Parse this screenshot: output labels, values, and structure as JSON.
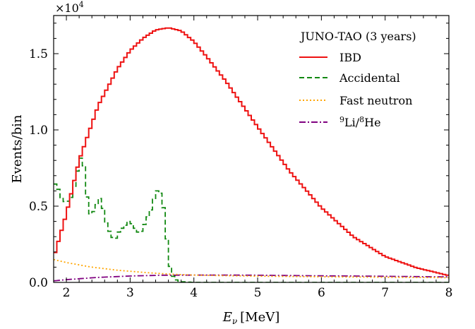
{
  "chart_data": {
    "type": "line",
    "x_label_main": "E",
    "x_label_sub": "ν",
    "x_label_unit": "[MeV]",
    "ylabel": "Events/bin",
    "y_multiplier_base": "×10",
    "y_multiplier_exp": "4",
    "xlim": [
      1.8,
      8.0
    ],
    "ylim": [
      0,
      17500
    ],
    "x_ticks": [
      2,
      3,
      4,
      5,
      6,
      7,
      8
    ],
    "y_ticks": [
      0,
      5000,
      10000,
      15000
    ],
    "y_tick_labels": [
      "0.0",
      "0.5",
      "1.0",
      "1.5"
    ],
    "bin_width": 0.05,
    "grid": false,
    "legend_position": "top-right",
    "legend_title": "JUNO-TAO (3 years)",
    "legend": [
      {
        "label": "IBD",
        "color": "#ee1111",
        "dash": "solid"
      },
      {
        "label": "Accidental",
        "color": "#118811",
        "dash": "dashed"
      },
      {
        "label": "Fast neutron",
        "color": "#ffa500",
        "dash": "dotted"
      },
      {
        "label_sup1": "9",
        "label_mid": "Li/",
        "label_sup2": "8",
        "label_end": "He",
        "color": "#800080",
        "dash": "dashdot"
      }
    ],
    "series": [
      {
        "name": "IBD",
        "step": true,
        "points": [
          [
            1.8,
            1600
          ],
          [
            2.0,
            4500
          ],
          [
            2.2,
            8000
          ],
          [
            2.5,
            11600
          ],
          [
            2.8,
            14000
          ],
          [
            3.0,
            15200
          ],
          [
            3.2,
            16000
          ],
          [
            3.4,
            16550
          ],
          [
            3.6,
            16700
          ],
          [
            3.8,
            16500
          ],
          [
            4.0,
            15800
          ],
          [
            4.2,
            14800
          ],
          [
            4.5,
            13200
          ],
          [
            5.0,
            10200
          ],
          [
            5.5,
            7300
          ],
          [
            6.0,
            4900
          ],
          [
            6.5,
            3000
          ],
          [
            7.0,
            1700
          ],
          [
            7.5,
            950
          ],
          [
            8.0,
            450
          ]
        ]
      },
      {
        "name": "Accidental",
        "step": true,
        "points": [
          [
            1.8,
            6400
          ],
          [
            1.85,
            6500
          ],
          [
            1.9,
            5700
          ],
          [
            1.95,
            5300
          ],
          [
            2.0,
            5300
          ],
          [
            2.05,
            5350
          ],
          [
            2.1,
            5800
          ],
          [
            2.15,
            6800
          ],
          [
            2.2,
            7800
          ],
          [
            2.25,
            8500
          ],
          [
            2.3,
            6800
          ],
          [
            2.35,
            4400
          ],
          [
            2.4,
            4600
          ],
          [
            2.45,
            4700
          ],
          [
            2.5,
            5500
          ],
          [
            2.55,
            5500
          ],
          [
            2.6,
            4200
          ],
          [
            2.65,
            3600
          ],
          [
            2.7,
            3100
          ],
          [
            2.75,
            2800
          ],
          [
            2.8,
            3000
          ],
          [
            2.85,
            3600
          ],
          [
            2.9,
            3500
          ],
          [
            2.95,
            4000
          ],
          [
            3.0,
            4000
          ],
          [
            3.05,
            3700
          ],
          [
            3.1,
            3400
          ],
          [
            3.15,
            3200
          ],
          [
            3.2,
            3500
          ],
          [
            3.25,
            4100
          ],
          [
            3.3,
            4500
          ],
          [
            3.35,
            5000
          ],
          [
            3.4,
            5900
          ],
          [
            3.45,
            6100
          ],
          [
            3.5,
            5600
          ],
          [
            3.55,
            4200
          ],
          [
            3.6,
            1500
          ],
          [
            3.65,
            600
          ],
          [
            3.7,
            200
          ],
          [
            3.8,
            50
          ],
          [
            4.0,
            0
          ],
          [
            8.0,
            0
          ]
        ]
      },
      {
        "name": "Fast neutron",
        "step": false,
        "points": [
          [
            1.8,
            1500
          ],
          [
            2.0,
            1300
          ],
          [
            2.2,
            1150
          ],
          [
            2.4,
            1000
          ],
          [
            2.6,
            900
          ],
          [
            2.8,
            800
          ],
          [
            3.0,
            730
          ],
          [
            3.2,
            660
          ],
          [
            3.4,
            600
          ],
          [
            3.6,
            550
          ],
          [
            3.8,
            510
          ],
          [
            4.0,
            480
          ],
          [
            4.5,
            440
          ],
          [
            5.0,
            410
          ],
          [
            6.0,
            370
          ],
          [
            7.0,
            340
          ],
          [
            8.0,
            310
          ]
        ]
      },
      {
        "name": "9Li/8He",
        "step": false,
        "points": [
          [
            1.8,
            100
          ],
          [
            2.0,
            180
          ],
          [
            2.5,
            330
          ],
          [
            3.0,
            420
          ],
          [
            3.5,
            470
          ],
          [
            4.0,
            480
          ],
          [
            4.5,
            480
          ],
          [
            5.0,
            470
          ],
          [
            5.5,
            450
          ],
          [
            6.0,
            430
          ],
          [
            6.5,
            420
          ],
          [
            7.0,
            400
          ],
          [
            7.5,
            380
          ],
          [
            8.0,
            360
          ]
        ]
      }
    ]
  }
}
